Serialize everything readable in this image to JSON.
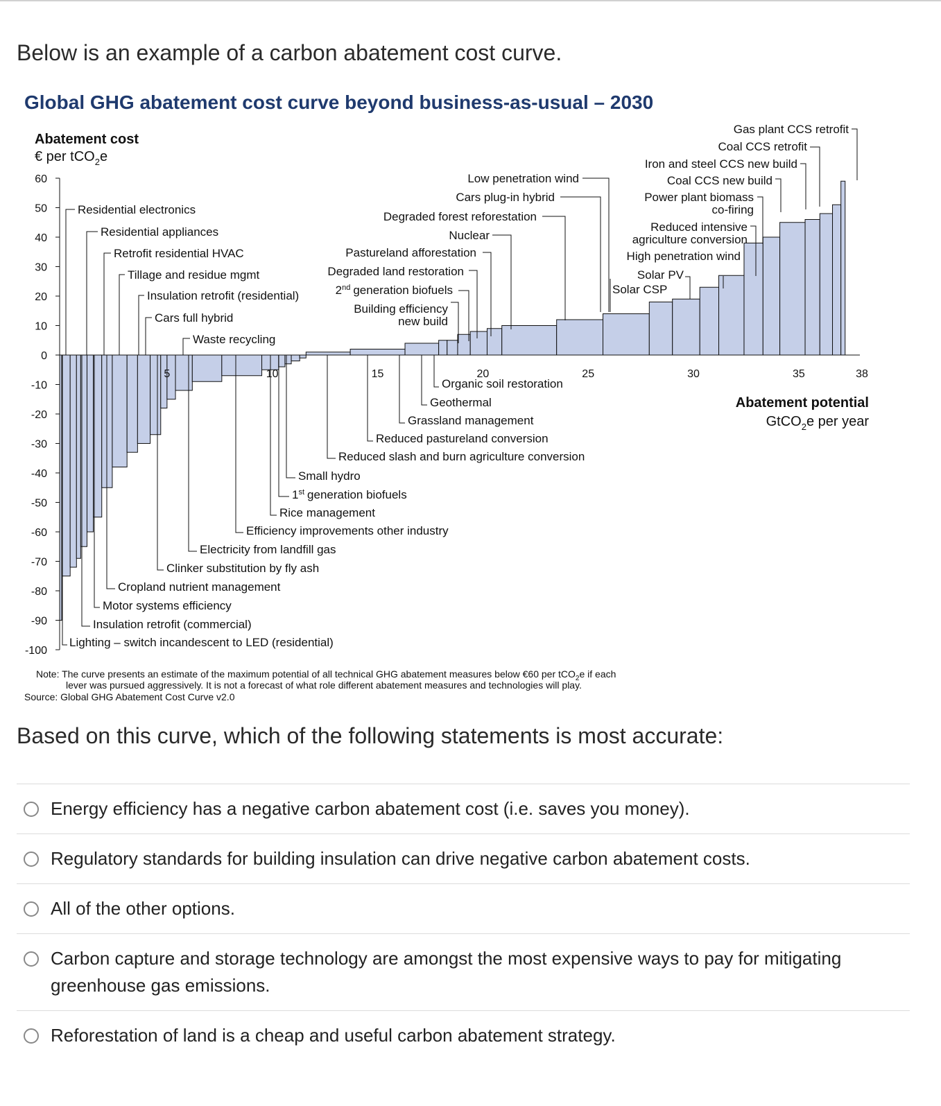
{
  "intro_text": "Below is an example of a carbon abatement cost curve.",
  "question_text": "Based on this curve, which of the following statements is most accurate:",
  "options": [
    {
      "label": "Energy efficiency has a negative carbon abatement cost (i.e. saves you money)."
    },
    {
      "label": "Regulatory standards for building insulation can drive negative carbon abatement costs."
    },
    {
      "label": "All of the other options."
    },
    {
      "label": "Carbon capture and storage technology are amongst the most expensive ways to pay for mitigating greenhouse gas emissions."
    },
    {
      "label": "Reforestation of land is a cheap and useful carbon abatement strategy."
    }
  ],
  "colors": {
    "bar_fill": "#c5cfe8",
    "title": "#1f3a6e"
  },
  "chart_data": {
    "type": "bar",
    "title": "Global GHG abatement cost curve beyond business-as-usual – 2030",
    "ylabel": "Abatement cost",
    "ylabel_unit_prefix": "€ per tCO",
    "ylabel_unit_sub": "2",
    "ylabel_unit_suffix": "e",
    "xlabel": "Abatement potential",
    "xlabel_unit_prefix": "GtCO",
    "xlabel_unit_sub": "2",
    "xlabel_unit_suffix": "e per year",
    "ylim": [
      -100,
      60
    ],
    "xlim": [
      0,
      38
    ],
    "y_ticks": [
      "60",
      "50",
      "40",
      "30",
      "20",
      "10",
      "0",
      "-10",
      "-20",
      "-30",
      "-40",
      "-50",
      "-60",
      "-70",
      "-80",
      "-90",
      "-100"
    ],
    "x_ticks": [
      "5",
      "10",
      "15",
      "20",
      "25",
      "30",
      "35",
      "38"
    ],
    "bars": [
      {
        "x0": 0.0,
        "x1": 0.1,
        "value": -90
      },
      {
        "x0": 0.1,
        "x1": 0.5,
        "value": -75
      },
      {
        "x0": 0.5,
        "x1": 0.8,
        "value": -72
      },
      {
        "x0": 0.8,
        "x1": 1.0,
        "value": -69
      },
      {
        "x0": 1.0,
        "x1": 1.3,
        "value": -65
      },
      {
        "x0": 1.3,
        "x1": 1.6,
        "value": -60
      },
      {
        "x0": 1.6,
        "x1": 2.0,
        "value": -55
      },
      {
        "x0": 2.0,
        "x1": 2.5,
        "value": -45
      },
      {
        "x0": 2.5,
        "x1": 3.2,
        "value": -38
      },
      {
        "x0": 3.2,
        "x1": 3.7,
        "value": -33
      },
      {
        "x0": 3.7,
        "x1": 4.3,
        "value": -30
      },
      {
        "x0": 4.3,
        "x1": 4.8,
        "value": -27
      },
      {
        "x0": 4.8,
        "x1": 5.1,
        "value": -18
      },
      {
        "x0": 5.1,
        "x1": 5.5,
        "value": -15
      },
      {
        "x0": 5.5,
        "x1": 6.3,
        "value": -12
      },
      {
        "x0": 6.3,
        "x1": 7.7,
        "value": -9
      },
      {
        "x0": 7.7,
        "x1": 9.6,
        "value": -7
      },
      {
        "x0": 9.6,
        "x1": 10.4,
        "value": -5
      },
      {
        "x0": 10.4,
        "x1": 10.7,
        "value": -4
      },
      {
        "x0": 10.7,
        "x1": 11.0,
        "value": -3
      },
      {
        "x0": 11.0,
        "x1": 11.4,
        "value": -2
      },
      {
        "x0": 11.4,
        "x1": 11.7,
        "value": -1
      },
      {
        "x0": 11.7,
        "x1": 13.8,
        "value": 1
      },
      {
        "x0": 13.8,
        "x1": 16.4,
        "value": 2
      },
      {
        "x0": 16.4,
        "x1": 18.0,
        "value": 4
      },
      {
        "x0": 18.0,
        "x1": 18.4,
        "value": 5
      },
      {
        "x0": 18.4,
        "x1": 18.9,
        "value": 5
      },
      {
        "x0": 18.9,
        "x1": 19.5,
        "value": 7
      },
      {
        "x0": 19.5,
        "x1": 20.3,
        "value": 8
      },
      {
        "x0": 20.3,
        "x1": 21.0,
        "value": 9
      },
      {
        "x0": 21.0,
        "x1": 23.6,
        "value": 10
      },
      {
        "x0": 23.6,
        "x1": 25.8,
        "value": 12
      },
      {
        "x0": 25.8,
        "x1": 28.0,
        "value": 14
      },
      {
        "x0": 28.0,
        "x1": 29.1,
        "value": 18
      },
      {
        "x0": 29.1,
        "x1": 30.4,
        "value": 19
      },
      {
        "x0": 30.4,
        "x1": 31.3,
        "value": 23
      },
      {
        "x0": 31.3,
        "x1": 32.5,
        "value": 27
      },
      {
        "x0": 32.5,
        "x1": 33.4,
        "value": 38
      },
      {
        "x0": 33.4,
        "x1": 34.2,
        "value": 40
      },
      {
        "x0": 34.2,
        "x1": 35.4,
        "value": 45
      },
      {
        "x0": 35.4,
        "x1": 36.1,
        "value": 46
      },
      {
        "x0": 36.1,
        "x1": 36.7,
        "value": 48
      },
      {
        "x0": 36.7,
        "x1": 37.1,
        "value": 51
      },
      {
        "x0": 37.1,
        "x1": 37.3,
        "value": 59
      }
    ],
    "annotations_above": [
      "Residential electronics",
      "Residential appliances",
      "Retrofit residential HVAC",
      "Tillage and residue mgmt",
      "Insulation retrofit (residential)",
      "Cars full hybrid",
      "Waste recycling",
      "Low penetration wind",
      "Cars plug-in hybrid",
      "Degraded forest reforestation",
      "Nuclear",
      "Pastureland afforestation",
      "Degraded land restoration",
      "generation biofuels",
      "Building efficiency",
      "new build",
      "Gas plant CCS retrofit",
      "Coal CCS retrofit",
      "Iron and steel CCS new build",
      "Coal CCS new build",
      "Power plant biomass",
      "co-firing",
      "Reduced intensive",
      "agriculture conversion",
      "High penetration wind",
      "Solar PV",
      "Solar CSP"
    ],
    "annotations_below": [
      "Organic soil restoration",
      "Geothermal",
      "Grassland management",
      "Reduced pastureland conversion",
      "Reduced slash and burn agriculture conversion",
      "Small hydro",
      "generation biofuels",
      "Rice management",
      "Efficiency improvements other industry",
      "Electricity from landfill gas",
      "Clinker substitution by fly ash",
      "Cropland nutrient management",
      "Motor systems efficiency",
      "Insulation retrofit (commercial)",
      "Lighting – switch incandescent to LED (residential)"
    ],
    "sup_2nd": "nd",
    "sup_1st": "st",
    "num_2": "2",
    "num_1": "1",
    "note_line1_a": "Note: The curve presents an estimate of the maximum potential of all technical GHG abatement measures below €60 per tCO",
    "note_line1_sub": "2",
    "note_line1_b": "e if each",
    "note_line2": "lever was pursued aggressively. It is not a forecast of what role different abatement measures and technologies will play.",
    "source": "Source: Global GHG Abatement Cost Curve v2.0"
  }
}
